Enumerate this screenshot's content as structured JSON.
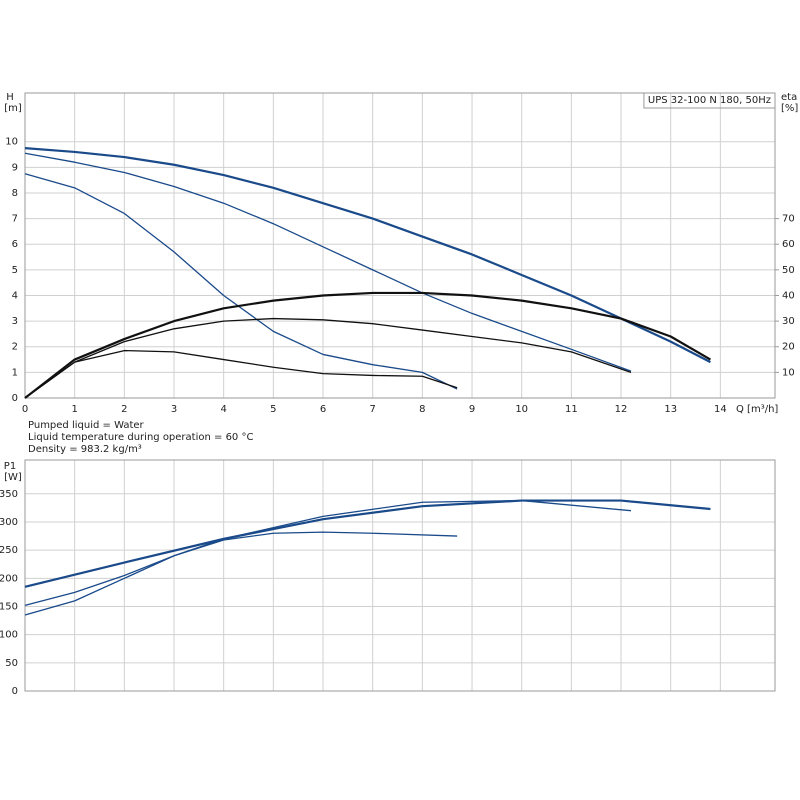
{
  "chart_data": [
    {
      "type": "line",
      "title": "UPS 32-100 N 180, 50Hz",
      "ylabel": "H",
      "yunit": "[m]",
      "y2label": "eta",
      "y2unit": "[%]",
      "xlabel": "Q [m³/h]",
      "notes": [
        "Pumped liquid = Water",
        "Liquid temperature during operation = 60 °C",
        "Density = 983.2 kg/m³"
      ],
      "xlim": [
        0,
        15.1
      ],
      "xticks": [
        0,
        1,
        2,
        3,
        4,
        5,
        6,
        7,
        8,
        9,
        10,
        11,
        12,
        13,
        14
      ],
      "ylim": [
        0,
        11.9
      ],
      "yticks": [
        0,
        1,
        2,
        3,
        4,
        5,
        6,
        7,
        8,
        9,
        10
      ],
      "y2lim": [
        0,
        119
      ],
      "y2ticks": [
        10,
        20,
        30,
        40,
        50,
        60,
        70
      ],
      "grid": true,
      "show_xtick_labels": true,
      "series": [
        {
          "color": "#1a4a8a",
          "width": 2.2,
          "x": [
            0,
            1,
            2,
            3,
            4,
            5,
            6,
            7,
            8,
            9,
            10,
            11,
            12,
            13,
            13.8
          ],
          "values": [
            9.75,
            9.6,
            9.4,
            9.1,
            8.7,
            8.2,
            7.6,
            7.0,
            6.3,
            5.6,
            4.8,
            4.0,
            3.1,
            2.2,
            1.4
          ]
        },
        {
          "color": "#1a4a8a",
          "width": 1.3,
          "x": [
            0,
            1,
            2,
            3,
            4,
            5,
            6,
            7,
            8,
            9,
            10,
            11,
            12.2
          ],
          "values": [
            9.55,
            9.2,
            8.8,
            8.25,
            7.6,
            6.8,
            5.9,
            5.0,
            4.1,
            3.3,
            2.6,
            1.9,
            1.05
          ]
        },
        {
          "color": "#1a4a8a",
          "width": 1.3,
          "x": [
            0,
            1,
            2,
            3,
            4,
            5,
            6,
            7,
            8,
            8.7
          ],
          "values": [
            8.75,
            8.2,
            7.2,
            5.7,
            4.0,
            2.6,
            1.7,
            1.3,
            1.0,
            0.35
          ]
        },
        {
          "color": "#111111",
          "width": 2.2,
          "axis": "y2",
          "x": [
            0,
            1,
            2,
            3,
            4,
            5,
            6,
            7,
            8,
            9,
            10,
            11,
            12,
            13,
            13.8
          ],
          "values": [
            0,
            15,
            23,
            30,
            35,
            38,
            40,
            41,
            41,
            40,
            38,
            35,
            31,
            24,
            15
          ]
        },
        {
          "color": "#111111",
          "width": 1.3,
          "axis": "y2",
          "x": [
            0,
            1,
            2,
            3,
            4,
            5,
            6,
            7,
            8,
            9,
            10,
            11,
            12.2
          ],
          "values": [
            0,
            14,
            22,
            27,
            30,
            31,
            30.5,
            29,
            26.5,
            24,
            21.5,
            18,
            10
          ]
        },
        {
          "color": "#111111",
          "width": 1.3,
          "axis": "y2",
          "x": [
            0,
            1,
            2,
            3,
            4,
            5,
            6,
            7,
            8,
            8.7
          ],
          "values": [
            0,
            14,
            18.5,
            18,
            15,
            12,
            9.5,
            8.8,
            8.5,
            4
          ]
        }
      ]
    },
    {
      "type": "line",
      "ylabel": "P1",
      "yunit": "[W]",
      "xlim": [
        0,
        15.1
      ],
      "xticks": [
        0,
        1,
        2,
        3,
        4,
        5,
        6,
        7,
        8,
        9,
        10,
        11,
        12,
        13,
        14
      ],
      "ylim": [
        0,
        410
      ],
      "yticks": [
        0,
        50,
        100,
        150,
        200,
        250,
        300,
        350
      ],
      "grid": true,
      "show_xtick_labels": false,
      "series": [
        {
          "color": "#1a4a8a",
          "width": 2.2,
          "x": [
            0,
            2,
            4,
            6,
            8,
            10,
            12,
            13.8
          ],
          "values": [
            185,
            228,
            270,
            305,
            328,
            338,
            338,
            323
          ]
        },
        {
          "color": "#1a4a8a",
          "width": 1.3,
          "x": [
            0,
            1,
            2,
            3,
            4,
            6,
            8,
            10,
            12.2
          ],
          "values": [
            152,
            175,
            205,
            240,
            270,
            310,
            335,
            338,
            320
          ]
        },
        {
          "color": "#1a4a8a",
          "width": 1.3,
          "x": [
            0,
            1,
            2,
            3,
            4,
            5,
            6,
            7,
            8.7
          ],
          "values": [
            135,
            160,
            200,
            240,
            268,
            280,
            282,
            280,
            275
          ]
        }
      ]
    }
  ]
}
